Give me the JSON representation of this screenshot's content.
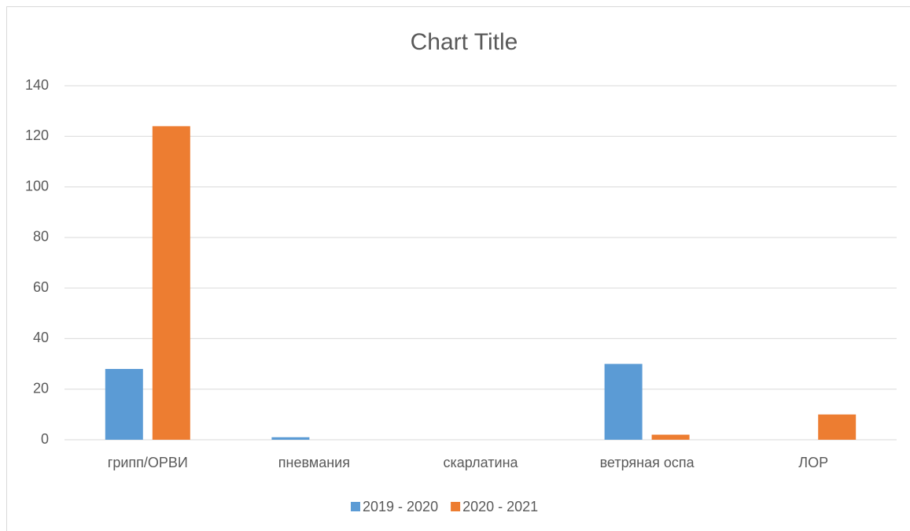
{
  "chart_data": {
    "type": "bar",
    "title": "Chart Title",
    "categories": [
      "грипп/ОРВИ",
      "пневмания",
      "скарлатина",
      "ветряная оспа",
      "ЛОР"
    ],
    "series": [
      {
        "name": "2019 - 2020",
        "color": "#5b9bd5",
        "values": [
          28,
          1,
          0,
          30,
          0
        ]
      },
      {
        "name": "2020 - 2021",
        "color": "#ed7d31",
        "values": [
          124,
          0,
          0,
          2,
          10
        ]
      }
    ],
    "ylim": [
      0,
      140
    ],
    "yticks": [
      0,
      20,
      40,
      60,
      80,
      100,
      120,
      140
    ],
    "grid": true,
    "legend": "bottom"
  }
}
